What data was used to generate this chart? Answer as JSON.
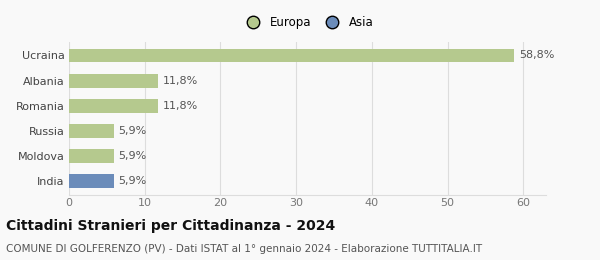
{
  "categories": [
    "India",
    "Moldova",
    "Russia",
    "Romania",
    "Albania",
    "Ucraina"
  ],
  "values": [
    5.9,
    5.9,
    5.9,
    11.8,
    11.8,
    58.8
  ],
  "colors": [
    "#6b8cba",
    "#b5c98e",
    "#b5c98e",
    "#b5c98e",
    "#b5c98e",
    "#b5c98e"
  ],
  "labels": [
    "5,9%",
    "5,9%",
    "5,9%",
    "11,8%",
    "11,8%",
    "58,8%"
  ],
  "legend": [
    {
      "label": "Europa",
      "color": "#b5c98e"
    },
    {
      "label": "Asia",
      "color": "#6b8cba"
    }
  ],
  "xlim": [
    0,
    63
  ],
  "xticks": [
    0,
    10,
    20,
    30,
    40,
    50,
    60
  ],
  "title": "Cittadini Stranieri per Cittadinanza - 2024",
  "subtitle": "COMUNE DI GOLFERENZO (PV) - Dati ISTAT al 1° gennaio 2024 - Elaborazione TUTTITALIA.IT",
  "title_fontsize": 10,
  "subtitle_fontsize": 7.5,
  "bar_height": 0.55,
  "background_color": "#f9f9f9",
  "grid_color": "#dddddd",
  "label_fontsize": 8,
  "ytick_fontsize": 8,
  "xtick_fontsize": 8
}
